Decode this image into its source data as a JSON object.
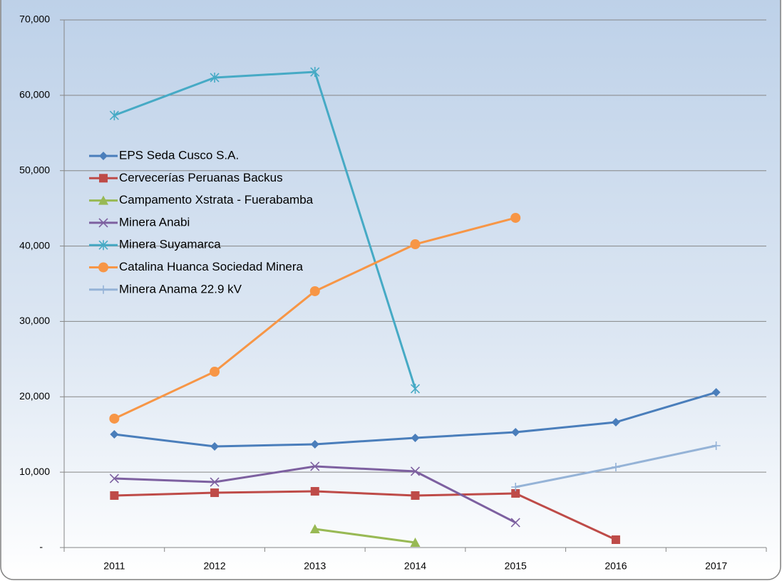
{
  "chart_data": {
    "type": "line",
    "categories": [
      "2011",
      "2012",
      "2013",
      "2014",
      "2015",
      "2016",
      "2017"
    ],
    "series": [
      {
        "name": "EPS Seda Cusco S.A.",
        "color": "#4a7ebb",
        "marker": "diamond",
        "values": [
          15020,
          13410,
          13700,
          14550,
          15300,
          16630,
          20590
        ]
      },
      {
        "name": "Cervecerías Peruanas Backus",
        "color": "#be4b48",
        "marker": "square",
        "values": [
          6900,
          7270,
          7460,
          6900,
          7180,
          1040,
          null
        ]
      },
      {
        "name": "Campamento Xstrata - Fuerabamba",
        "color": "#98b954",
        "marker": "triangle",
        "values": [
          null,
          null,
          2460,
          660,
          null,
          null,
          null
        ]
      },
      {
        "name": "Minera Anabi",
        "color": "#7d60a0",
        "marker": "x",
        "values": [
          9160,
          8690,
          10770,
          10110,
          3310,
          null,
          null
        ]
      },
      {
        "name": "Minera Suyamarca",
        "color": "#46aac5",
        "marker": "star",
        "values": [
          57340,
          62350,
          63100,
          21070,
          null,
          null,
          null
        ]
      },
      {
        "name": "Catalina Huanca Sociedad Minera",
        "color": "#f79646",
        "marker": "circle",
        "values": [
          17100,
          23330,
          34010,
          40240,
          43740,
          null,
          null
        ]
      },
      {
        "name": "Minera Anama 22.9 kV",
        "color": "#95b3d7",
        "marker": "plus",
        "values": [
          null,
          null,
          null,
          null,
          8030,
          10670,
          13510
        ]
      }
    ],
    "ylim": [
      0,
      70000
    ],
    "yticks": [
      {
        "value": 0,
        "label": "-"
      },
      {
        "value": 10000,
        "label": "10,000"
      },
      {
        "value": 20000,
        "label": "20,000"
      },
      {
        "value": 30000,
        "label": "30,000"
      },
      {
        "value": 40000,
        "label": "40,000"
      },
      {
        "value": 50000,
        "label": "50,000"
      },
      {
        "value": 60000,
        "label": "60,000"
      },
      {
        "value": 70000,
        "label": "70,000"
      }
    ],
    "grid": true,
    "legend": "left"
  }
}
